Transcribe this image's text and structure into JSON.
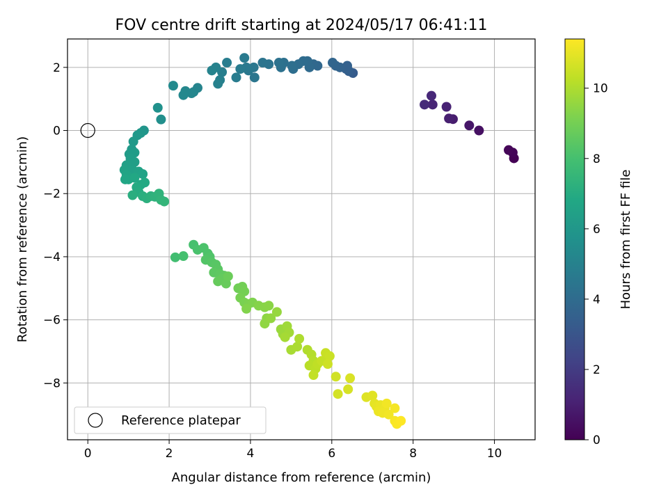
{
  "chart_data": {
    "type": "scatter",
    "title": "FOV centre drift starting at 2024/05/17 06:41:11",
    "xlabel": "Angular distance from reference (arcmin)",
    "ylabel": "Rotation from reference (arcmin)",
    "colorbar_label": "Hours from first FF file",
    "xlim": [
      -0.5,
      11.0
    ],
    "ylim": [
      -9.8,
      2.9
    ],
    "clim": [
      0,
      11.4
    ],
    "xticks": [
      0,
      2,
      4,
      6,
      8,
      10
    ],
    "yticks": [
      -8,
      -6,
      -4,
      -2,
      0,
      2
    ],
    "cticks": [
      0,
      2,
      4,
      6,
      8,
      10
    ],
    "colormap": "viridis",
    "grid": true,
    "legend": {
      "placement": "lower-left",
      "entries": [
        "Reference platepar"
      ]
    },
    "reference_point": {
      "x": 0,
      "y": 0
    },
    "series": [
      {
        "points": [
          [
            10.48,
            -0.88,
            0.0
          ],
          [
            10.45,
            -0.7,
            0.1
          ],
          [
            10.35,
            -0.62,
            0.15
          ],
          [
            9.62,
            0.0,
            0.5
          ],
          [
            9.38,
            0.16,
            0.7
          ],
          [
            8.98,
            0.36,
            0.9
          ],
          [
            8.88,
            0.38,
            1.0
          ],
          [
            8.82,
            0.75,
            1.1
          ],
          [
            8.48,
            0.82,
            1.2
          ],
          [
            8.45,
            1.1,
            1.3
          ],
          [
            8.28,
            0.82,
            1.4
          ],
          [
            6.52,
            1.82,
            3.3
          ],
          [
            6.42,
            1.88,
            3.4
          ],
          [
            6.35,
            1.95,
            3.45
          ],
          [
            6.38,
            2.05,
            3.5
          ],
          [
            6.2,
            2.0,
            3.6
          ],
          [
            6.1,
            2.05,
            3.65
          ],
          [
            6.02,
            2.15,
            3.7
          ],
          [
            5.65,
            2.05,
            3.8
          ],
          [
            5.55,
            2.1,
            3.85
          ],
          [
            5.45,
            2.0,
            3.9
          ],
          [
            5.4,
            2.2,
            3.95
          ],
          [
            5.3,
            2.2,
            4.0
          ],
          [
            5.18,
            2.1,
            4.05
          ],
          [
            5.05,
            1.95,
            4.1
          ],
          [
            5.02,
            2.05,
            4.15
          ],
          [
            4.82,
            2.15,
            4.2
          ],
          [
            4.75,
            2.0,
            4.25
          ],
          [
            4.7,
            2.15,
            4.3
          ],
          [
            4.45,
            2.1,
            4.35
          ],
          [
            4.3,
            2.15,
            4.4
          ],
          [
            4.1,
            1.68,
            4.45
          ],
          [
            4.08,
            2.0,
            4.5
          ],
          [
            3.95,
            1.9,
            4.55
          ],
          [
            3.9,
            2.0,
            4.6
          ],
          [
            3.85,
            2.3,
            4.65
          ],
          [
            3.75,
            1.95,
            4.7
          ],
          [
            3.65,
            1.68,
            4.75
          ],
          [
            3.42,
            2.15,
            4.8
          ],
          [
            3.3,
            1.85,
            4.85
          ],
          [
            3.25,
            1.6,
            4.9
          ],
          [
            3.2,
            1.48,
            4.95
          ],
          [
            3.15,
            2.0,
            5.0
          ],
          [
            3.05,
            1.9,
            5.05
          ],
          [
            2.7,
            1.35,
            5.1
          ],
          [
            2.6,
            1.22,
            5.15
          ],
          [
            2.55,
            1.18,
            5.2
          ],
          [
            2.4,
            1.25,
            5.25
          ],
          [
            2.35,
            1.12,
            5.3
          ],
          [
            2.1,
            1.42,
            5.4
          ],
          [
            1.8,
            0.35,
            5.6
          ],
          [
            1.72,
            0.72,
            5.7
          ],
          [
            1.38,
            0.0,
            5.9
          ],
          [
            1.3,
            -0.08,
            6.0
          ],
          [
            1.22,
            -0.15,
            6.05
          ],
          [
            1.12,
            -0.35,
            6.1
          ],
          [
            1.08,
            -0.6,
            6.15
          ],
          [
            1.02,
            -0.75,
            6.2
          ],
          [
            1.15,
            -0.7,
            6.25
          ],
          [
            1.05,
            -0.9,
            6.3
          ],
          [
            1.15,
            -1.0,
            6.35
          ],
          [
            0.95,
            -1.1,
            6.4
          ],
          [
            1.1,
            -1.25,
            6.45
          ],
          [
            0.9,
            -1.25,
            6.5
          ],
          [
            1.25,
            -1.3,
            6.55
          ],
          [
            1.35,
            -1.38,
            6.6
          ],
          [
            0.95,
            -1.4,
            6.65
          ],
          [
            1.0,
            -1.55,
            6.7
          ],
          [
            0.92,
            -1.55,
            6.75
          ],
          [
            1.15,
            -1.5,
            6.8
          ],
          [
            1.3,
            -1.72,
            6.85
          ],
          [
            1.4,
            -1.65,
            6.9
          ],
          [
            1.2,
            -1.8,
            6.95
          ],
          [
            1.25,
            -1.95,
            7.0
          ],
          [
            1.1,
            -2.05,
            7.1
          ],
          [
            1.35,
            -2.08,
            7.15
          ],
          [
            1.45,
            -2.15,
            7.2
          ],
          [
            1.55,
            -2.08,
            7.25
          ],
          [
            1.65,
            -2.1,
            7.3
          ],
          [
            1.75,
            -2.0,
            7.35
          ],
          [
            1.8,
            -2.2,
            7.4
          ],
          [
            1.88,
            -2.25,
            7.45
          ],
          [
            2.15,
            -4.02,
            7.9
          ],
          [
            2.35,
            -3.98,
            8.0
          ],
          [
            2.6,
            -3.62,
            8.05
          ],
          [
            2.7,
            -3.78,
            8.1
          ],
          [
            2.85,
            -3.72,
            8.15
          ],
          [
            2.95,
            -3.9,
            8.2
          ],
          [
            3.0,
            -4.0,
            8.25
          ],
          [
            2.9,
            -4.1,
            8.3
          ],
          [
            3.05,
            -4.18,
            8.35
          ],
          [
            3.15,
            -4.25,
            8.4
          ],
          [
            3.2,
            -4.4,
            8.45
          ],
          [
            3.1,
            -4.5,
            8.5
          ],
          [
            3.25,
            -4.55,
            8.55
          ],
          [
            3.35,
            -4.6,
            8.6
          ],
          [
            3.3,
            -4.7,
            8.65
          ],
          [
            3.2,
            -4.78,
            8.7
          ],
          [
            3.4,
            -4.85,
            8.75
          ],
          [
            3.45,
            -4.62,
            8.8
          ],
          [
            3.7,
            -5.0,
            8.9
          ],
          [
            3.8,
            -4.95,
            8.95
          ],
          [
            3.85,
            -5.1,
            9.0
          ],
          [
            3.75,
            -5.3,
            9.05
          ],
          [
            3.85,
            -5.45,
            9.1
          ],
          [
            3.95,
            -5.5,
            9.15
          ],
          [
            4.05,
            -5.45,
            9.2
          ],
          [
            3.9,
            -5.65,
            9.25
          ],
          [
            4.2,
            -5.55,
            9.3
          ],
          [
            4.35,
            -5.6,
            9.35
          ],
          [
            4.45,
            -5.55,
            9.4
          ],
          [
            4.4,
            -5.95,
            9.45
          ],
          [
            4.35,
            -6.12,
            9.5
          ],
          [
            4.5,
            -5.95,
            9.55
          ],
          [
            4.65,
            -5.75,
            9.6
          ],
          [
            4.75,
            -6.3,
            9.65
          ],
          [
            4.8,
            -6.45,
            9.7
          ],
          [
            4.9,
            -6.2,
            9.75
          ],
          [
            4.95,
            -6.4,
            9.8
          ],
          [
            4.85,
            -6.55,
            9.85
          ],
          [
            5.0,
            -6.95,
            9.9
          ],
          [
            5.15,
            -6.85,
            9.95
          ],
          [
            5.2,
            -6.6,
            10.0
          ],
          [
            5.4,
            -6.95,
            10.05
          ],
          [
            5.5,
            -7.1,
            10.1
          ],
          [
            5.55,
            -7.3,
            10.15
          ],
          [
            5.45,
            -7.45,
            10.2
          ],
          [
            5.6,
            -7.55,
            10.25
          ],
          [
            5.65,
            -7.4,
            10.3
          ],
          [
            5.55,
            -7.75,
            10.35
          ],
          [
            5.75,
            -7.3,
            10.4
          ],
          [
            5.85,
            -7.05,
            10.45
          ],
          [
            5.95,
            -7.15,
            10.5
          ],
          [
            5.9,
            -7.4,
            10.55
          ],
          [
            6.1,
            -7.8,
            10.6
          ],
          [
            6.15,
            -8.35,
            10.65
          ],
          [
            6.4,
            -8.2,
            10.7
          ],
          [
            6.45,
            -7.85,
            10.75
          ],
          [
            6.85,
            -8.45,
            10.85
          ],
          [
            7.0,
            -8.4,
            10.9
          ],
          [
            7.05,
            -8.65,
            10.95
          ],
          [
            7.1,
            -8.75,
            11.0
          ],
          [
            7.2,
            -8.7,
            11.05
          ],
          [
            7.15,
            -8.9,
            11.1
          ],
          [
            7.3,
            -8.8,
            11.1
          ],
          [
            7.25,
            -8.95,
            11.15
          ],
          [
            7.4,
            -9.0,
            11.2
          ],
          [
            7.35,
            -8.65,
            11.2
          ],
          [
            7.55,
            -8.8,
            11.25
          ],
          [
            7.55,
            -9.2,
            11.3
          ],
          [
            7.6,
            -9.3,
            11.35
          ],
          [
            7.7,
            -9.2,
            11.4
          ]
        ]
      }
    ]
  }
}
